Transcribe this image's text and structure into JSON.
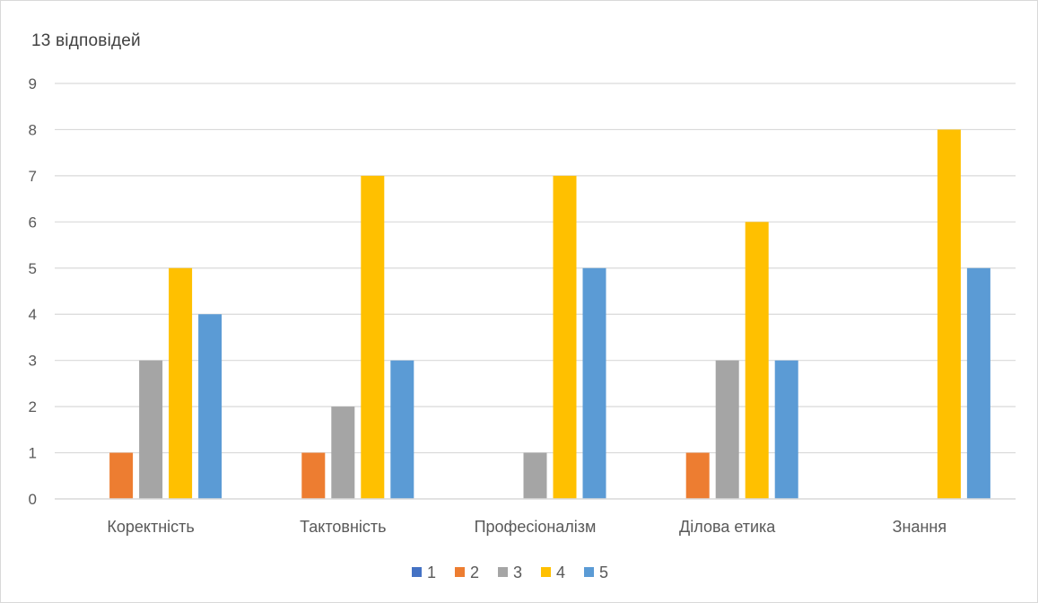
{
  "chart_data": {
    "type": "bar",
    "title": "13 відповідей",
    "categories": [
      "Коректність",
      "Тактовність",
      "Професіоналізм",
      "Ділова етика",
      "Знання"
    ],
    "series": [
      {
        "name": "1",
        "color": "#4472C4",
        "values": [
          0,
          0,
          0,
          0,
          0
        ]
      },
      {
        "name": "2",
        "color": "#ED7D31",
        "values": [
          1,
          1,
          0,
          1,
          0
        ]
      },
      {
        "name": "3",
        "color": "#A5A5A5",
        "values": [
          3,
          2,
          1,
          3,
          0
        ]
      },
      {
        "name": "4",
        "color": "#FFC000",
        "values": [
          5,
          7,
          7,
          6,
          8
        ]
      },
      {
        "name": "5",
        "color": "#5B9BD5",
        "values": [
          4,
          3,
          5,
          3,
          5
        ]
      }
    ],
    "y_ticks": [
      "0",
      "1",
      "2",
      "3",
      "4",
      "5",
      "6",
      "7",
      "8",
      "9"
    ],
    "ylim": [
      0,
      9
    ],
    "grid": true,
    "legend_position": "bottom",
    "gridline_color": "#d9d9d9"
  }
}
